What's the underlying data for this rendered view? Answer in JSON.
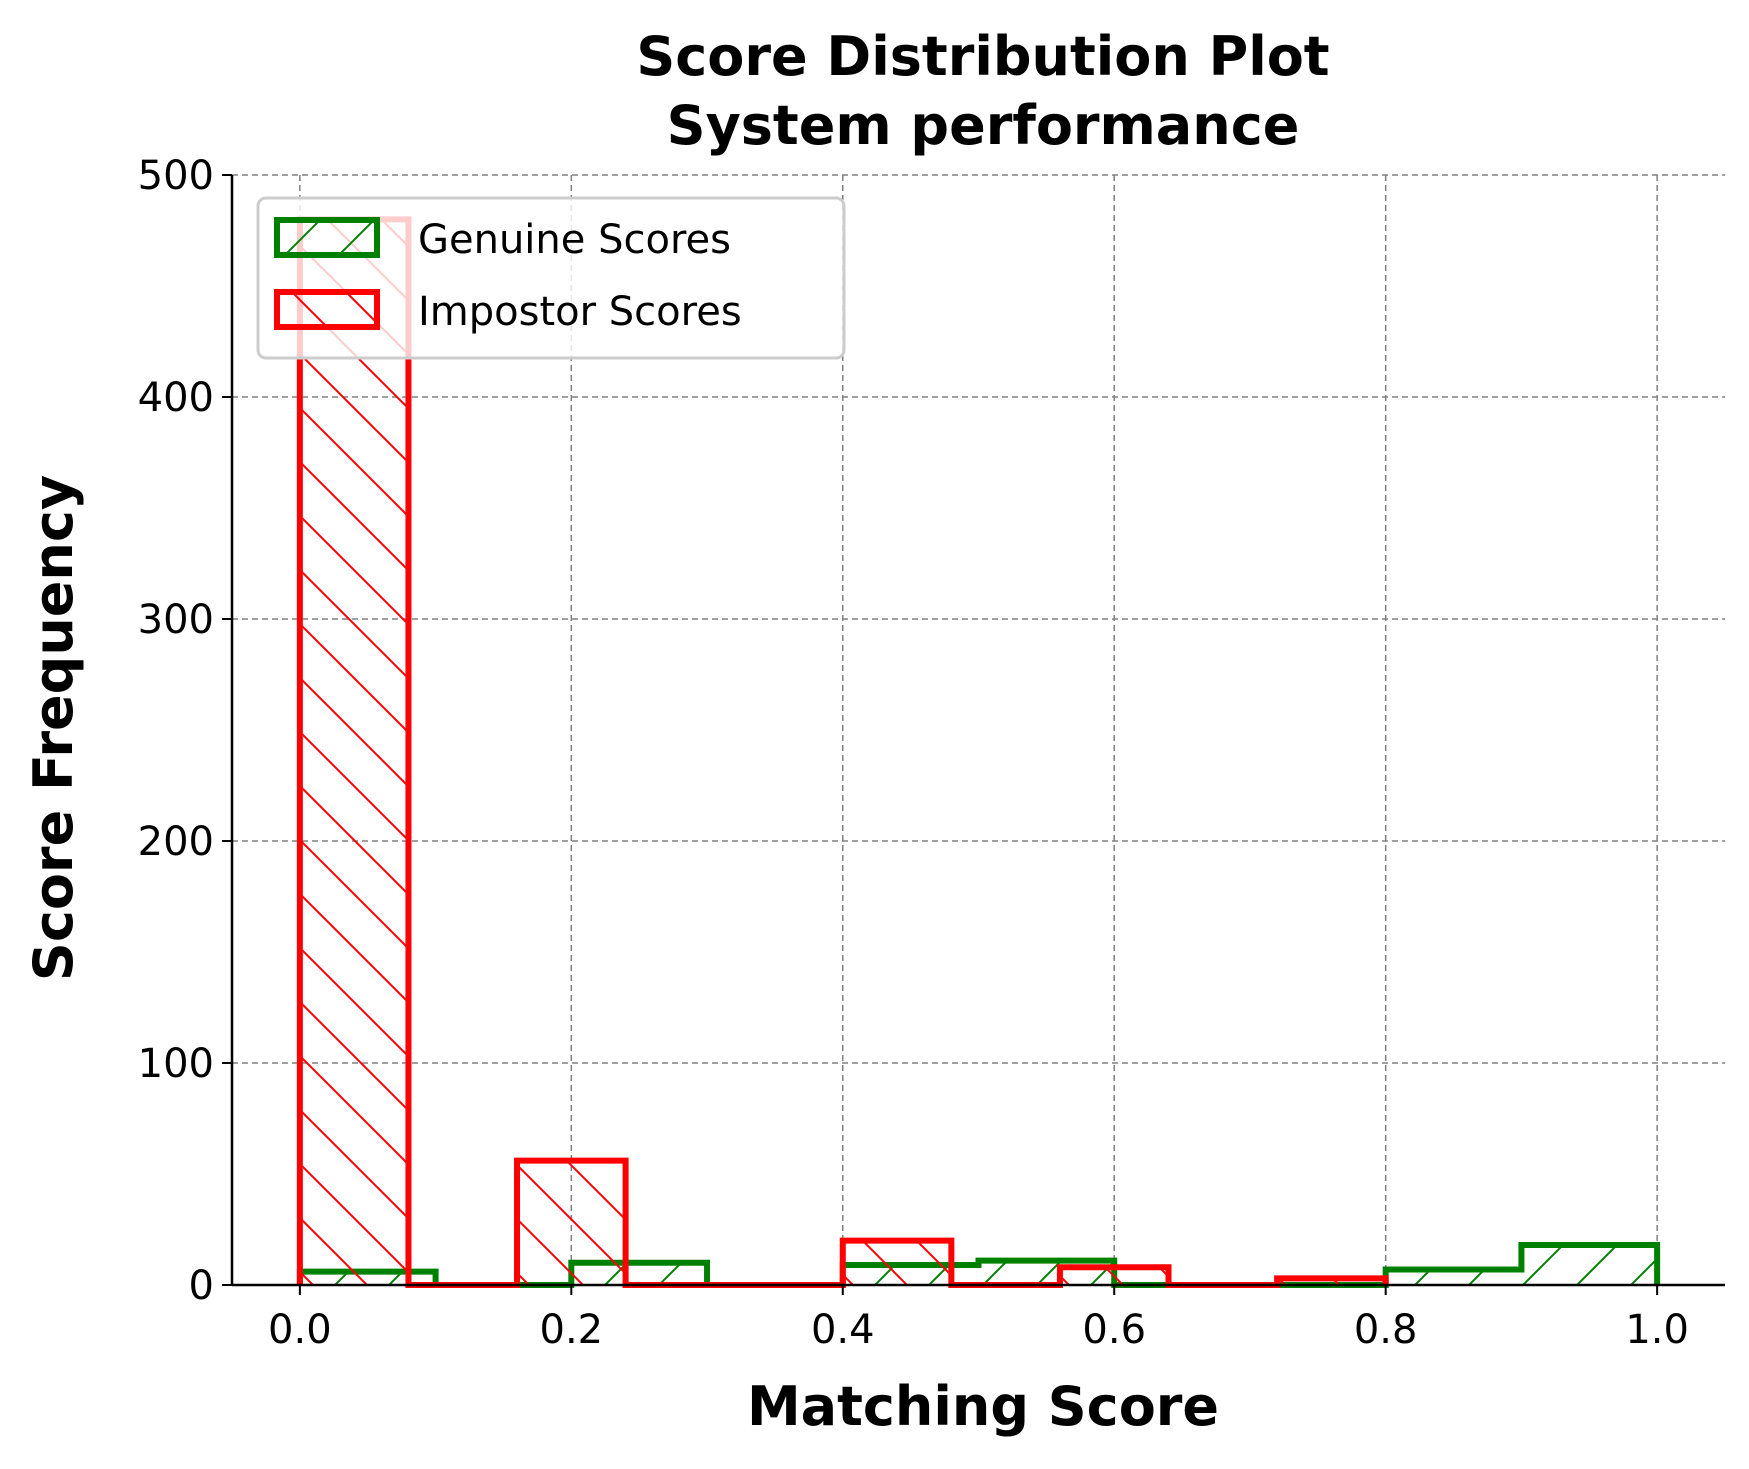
{
  "chart_data": {
    "type": "histogram",
    "title_lines": [
      "Score Distribution Plot",
      "System performance"
    ],
    "xlabel": "Matching Score",
    "ylabel": "Score Frequency",
    "xlim": [
      -0.05,
      1.05
    ],
    "ylim": [
      0,
      500
    ],
    "x_ticks": [
      "0.0",
      "0.2",
      "0.4",
      "0.6",
      "0.8",
      "1.0"
    ],
    "y_ticks": [
      "0",
      "100",
      "200",
      "300",
      "400",
      "500"
    ],
    "grid": true,
    "legend_position": "upper-left",
    "series": [
      {
        "name": "Genuine Scores",
        "color": "#008000",
        "hatch": "forward-slash",
        "bin_edges": [
          0.0,
          0.1,
          0.2,
          0.3,
          0.4,
          0.5,
          0.6,
          0.7,
          0.8,
          0.9,
          1.0
        ],
        "counts": [
          6,
          0,
          10,
          0,
          9,
          11,
          0,
          0,
          7,
          18
        ]
      },
      {
        "name": "Impostor Scores",
        "color": "#ff0000",
        "hatch": "back-slash",
        "bin_edges": [
          0.0,
          0.08,
          0.16,
          0.24,
          0.32,
          0.4,
          0.48,
          0.56,
          0.64,
          0.72,
          0.8
        ],
        "counts": [
          480,
          0,
          56,
          0,
          0,
          20,
          0,
          8,
          0,
          3
        ]
      }
    ]
  }
}
